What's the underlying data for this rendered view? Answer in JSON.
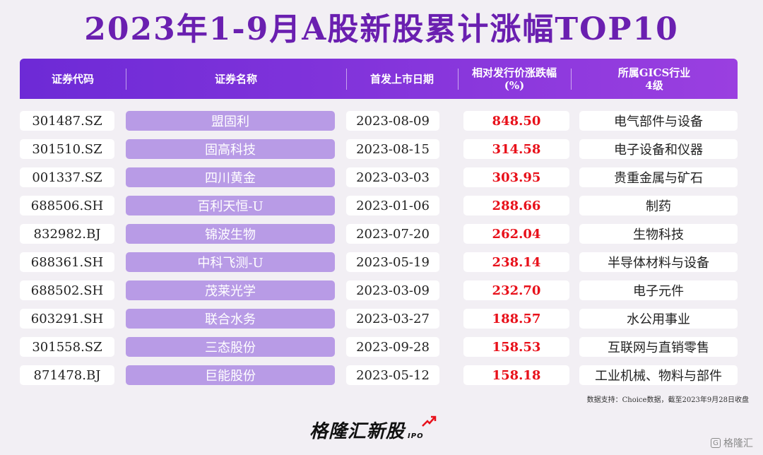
{
  "title": "2023年1-9月A股新股累计涨幅TOP10",
  "headers": {
    "code": "证券代码",
    "name": "证券名称",
    "date": "首发上市日期",
    "change_line1": "相对发行价涨跌幅",
    "change_line2": "(%)",
    "industry_line1": "所属GICS行业",
    "industry_line2": "4级"
  },
  "rows": [
    {
      "code": "301487.SZ",
      "name": "盟固利",
      "date": "2023-08-09",
      "change": "848.50",
      "industry": "电气部件与设备"
    },
    {
      "code": "301510.SZ",
      "name": "固高科技",
      "date": "2023-08-15",
      "change": "314.58",
      "industry": "电子设备和仪器"
    },
    {
      "code": "001337.SZ",
      "name": "四川黄金",
      "date": "2023-03-03",
      "change": "303.95",
      "industry": "贵重金属与矿石"
    },
    {
      "code": "688506.SH",
      "name": "百利天恒-U",
      "date": "2023-01-06",
      "change": "288.66",
      "industry": "制药"
    },
    {
      "code": "832982.BJ",
      "name": "锦波生物",
      "date": "2023-07-20",
      "change": "262.04",
      "industry": "生物科技"
    },
    {
      "code": "688361.SH",
      "name": "中科飞测-U",
      "date": "2023-05-19",
      "change": "238.14",
      "industry": "半导体材料与设备"
    },
    {
      "code": "688502.SH",
      "name": "茂莱光学",
      "date": "2023-03-09",
      "change": "232.70",
      "industry": "电子元件"
    },
    {
      "code": "603291.SH",
      "name": "联合水务",
      "date": "2023-03-27",
      "change": "188.57",
      "industry": "水公用事业"
    },
    {
      "code": "301558.SZ",
      "name": "三态股份",
      "date": "2023-09-28",
      "change": "158.53",
      "industry": "互联网与直销零售"
    },
    {
      "code": "871478.BJ",
      "name": "巨能股份",
      "date": "2023-05-12",
      "change": "158.18",
      "industry": "工业机械、物料与部件"
    }
  ],
  "chart_data": {
    "type": "table",
    "title": "2023年1-9月A股新股累计涨幅TOP10",
    "columns": [
      "证券代码",
      "证券名称",
      "首发上市日期",
      "相对发行价涨跌幅(%)",
      "所属GICS行业4级"
    ],
    "values": [
      848.5,
      314.58,
      303.95,
      288.66,
      262.04,
      238.14,
      232.7,
      188.57,
      158.53,
      158.18
    ]
  },
  "source": "数据支持：Choice数据，截至2023年9月28日收盘",
  "logo": {
    "text": "格隆汇新股",
    "sub": "IPO"
  },
  "watermark": "格隆汇",
  "colors": {
    "accent": "#6a1fb0",
    "header": "#7b2fd8",
    "name_cell": "#b89be6",
    "change_text": "#e8101a",
    "background": "#f2eff4"
  }
}
